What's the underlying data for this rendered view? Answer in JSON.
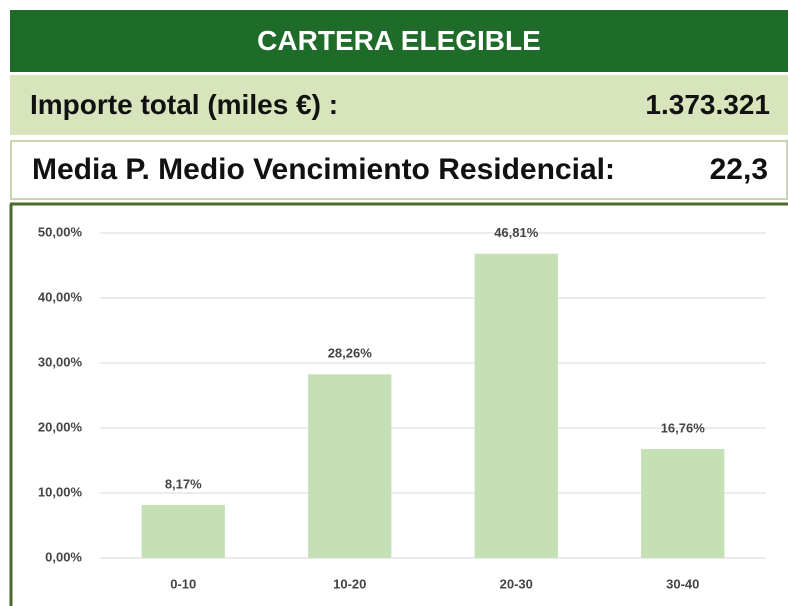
{
  "header": {
    "title": "CARTERA ELEGIBLE"
  },
  "summary": [
    {
      "label": "Importe total (miles €) :",
      "value": "1.373.321"
    },
    {
      "label": "Media P. Medio Vencimiento Residencial:",
      "value": "22,3"
    }
  ],
  "chart_data": {
    "type": "bar",
    "categories": [
      "0-10",
      "10-20",
      "20-30",
      "30-40"
    ],
    "values": [
      8.17,
      28.26,
      46.81,
      16.76
    ],
    "value_labels": [
      "8,17%",
      "28,26%",
      "46,81%",
      "16,76%"
    ],
    "color": "#c5e0b4",
    "ylim": [
      0,
      50
    ],
    "yticks": [
      {
        "value": 0,
        "label": "0,00%"
      },
      {
        "value": 10,
        "label": "10,00%"
      },
      {
        "value": 20,
        "label": "20,00%"
      },
      {
        "value": 30,
        "label": "30,00%"
      },
      {
        "value": 40,
        "label": "40,00%"
      },
      {
        "value": 50,
        "label": "50,00%"
      }
    ],
    "grid": true
  }
}
